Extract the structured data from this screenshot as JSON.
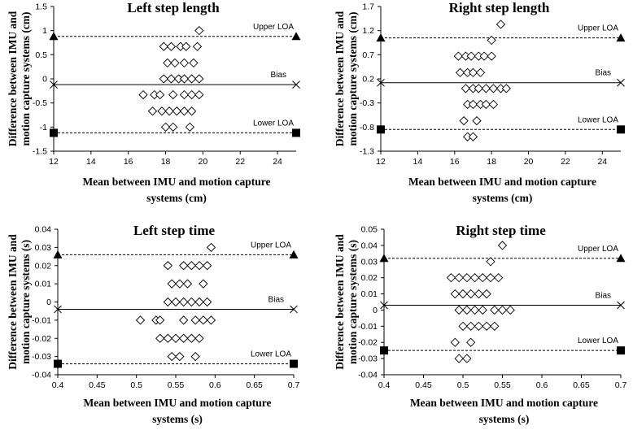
{
  "chart_data": [
    {
      "type": "scatter",
      "title": "Left step length",
      "ylabel": "Difference between IMU and motion capture systems (cm)",
      "xlabel": "Mean between IMU and motion capture systems (cm)",
      "xlim": [
        12,
        25
      ],
      "ylim": [
        -1.5,
        1.5
      ],
      "xticks": [
        "12",
        "14",
        "16",
        "18",
        "20",
        "22",
        "24"
      ],
      "yticks": [
        "1.5",
        "1",
        "0.5",
        "0",
        "-0.5",
        "-1",
        "-1.5"
      ],
      "annotations": {
        "upper": "Upper LOA",
        "bias": "Bias",
        "lower": "Lower LOA"
      },
      "upper_loa": 0.88,
      "bias": -0.12,
      "lower_loa": -1.12,
      "points": [
        {
          "x": 19.8,
          "y": 1.0
        },
        {
          "x": 17.9,
          "y": 0.67
        },
        {
          "x": 18.3,
          "y": 0.67
        },
        {
          "x": 18.8,
          "y": 0.67
        },
        {
          "x": 19.1,
          "y": 0.67
        },
        {
          "x": 19.7,
          "y": 0.67
        },
        {
          "x": 18.1,
          "y": 0.33
        },
        {
          "x": 18.5,
          "y": 0.33
        },
        {
          "x": 19.0,
          "y": 0.33
        },
        {
          "x": 19.5,
          "y": 0.33
        },
        {
          "x": 17.9,
          "y": 0.0
        },
        {
          "x": 18.3,
          "y": 0.0
        },
        {
          "x": 18.7,
          "y": 0.0
        },
        {
          "x": 19.0,
          "y": 0.0
        },
        {
          "x": 19.4,
          "y": 0.0
        },
        {
          "x": 19.8,
          "y": 0.0
        },
        {
          "x": 16.8,
          "y": -0.33
        },
        {
          "x": 17.4,
          "y": -0.33
        },
        {
          "x": 17.7,
          "y": -0.33
        },
        {
          "x": 18.4,
          "y": -0.33
        },
        {
          "x": 19.0,
          "y": -0.33
        },
        {
          "x": 19.4,
          "y": -0.33
        },
        {
          "x": 19.8,
          "y": -0.33
        },
        {
          "x": 17.3,
          "y": -0.67
        },
        {
          "x": 17.8,
          "y": -0.67
        },
        {
          "x": 18.2,
          "y": -0.67
        },
        {
          "x": 18.6,
          "y": -0.67
        },
        {
          "x": 19.0,
          "y": -0.67
        },
        {
          "x": 19.4,
          "y": -0.67
        },
        {
          "x": 18.0,
          "y": -1.0
        },
        {
          "x": 18.4,
          "y": -1.0
        },
        {
          "x": 19.3,
          "y": -1.0
        }
      ]
    },
    {
      "type": "scatter",
      "title": "Right step length",
      "ylabel": "Difference between IMU and motion capture systems (cm)",
      "xlabel": "Mean between IMU and motion capture systems (cm)",
      "xlim": [
        12,
        25
      ],
      "ylim": [
        -1.3,
        1.7
      ],
      "xticks": [
        "12",
        "14",
        "16",
        "18",
        "20",
        "22",
        "24"
      ],
      "yticks": [
        "1.7",
        "1.2",
        "0.7",
        "0.2",
        "-0.3",
        "-0.8",
        "-1.3"
      ],
      "annotations": {
        "upper": "Upper LOA",
        "bias": "Bias",
        "lower": "Lower LOA"
      },
      "upper_loa": 1.05,
      "bias": 0.12,
      "lower_loa": -0.85,
      "points": [
        {
          "x": 18.5,
          "y": 1.33
        },
        {
          "x": 18.0,
          "y": 1.0
        },
        {
          "x": 16.2,
          "y": 0.67
        },
        {
          "x": 16.6,
          "y": 0.67
        },
        {
          "x": 16.9,
          "y": 0.67
        },
        {
          "x": 17.3,
          "y": 0.67
        },
        {
          "x": 17.6,
          "y": 0.67
        },
        {
          "x": 18.0,
          "y": 0.67
        },
        {
          "x": 16.3,
          "y": 0.33
        },
        {
          "x": 16.7,
          "y": 0.33
        },
        {
          "x": 17.0,
          "y": 0.33
        },
        {
          "x": 17.4,
          "y": 0.33
        },
        {
          "x": 16.6,
          "y": 0.0
        },
        {
          "x": 17.0,
          "y": 0.0
        },
        {
          "x": 17.3,
          "y": 0.0
        },
        {
          "x": 17.7,
          "y": 0.0
        },
        {
          "x": 18.1,
          "y": 0.0
        },
        {
          "x": 18.5,
          "y": 0.0
        },
        {
          "x": 18.8,
          "y": 0.0
        },
        {
          "x": 16.7,
          "y": -0.33
        },
        {
          "x": 17.0,
          "y": -0.33
        },
        {
          "x": 17.4,
          "y": -0.33
        },
        {
          "x": 17.7,
          "y": -0.33
        },
        {
          "x": 18.1,
          "y": -0.33
        },
        {
          "x": 16.5,
          "y": -0.67
        },
        {
          "x": 17.2,
          "y": -0.67
        },
        {
          "x": 16.7,
          "y": -1.0
        },
        {
          "x": 17.0,
          "y": -1.0
        }
      ]
    },
    {
      "type": "scatter",
      "title": "Left step time",
      "ylabel": "Difference between IMU and motion capture systems (s)",
      "xlabel": "Mean between IMU and motion capture systems (s)",
      "xlim": [
        0.4,
        0.7
      ],
      "ylim": [
        -0.04,
        0.04
      ],
      "xticks": [
        "0.4",
        "0.45",
        "0.5",
        "0.55",
        "0.6",
        "0.65",
        "0.7"
      ],
      "yticks": [
        "0.04",
        "0.03",
        "0.02",
        "0.01",
        "0",
        "-0.01",
        "-0.02",
        "-0.03",
        "-0.04"
      ],
      "annotations": {
        "upper": "Upper LOA",
        "bias": "Bias",
        "lower": "Lower LOA"
      },
      "upper_loa": 0.026,
      "bias": -0.004,
      "lower_loa": -0.034,
      "points": [
        {
          "x": 0.595,
          "y": 0.03
        },
        {
          "x": 0.54,
          "y": 0.02
        },
        {
          "x": 0.56,
          "y": 0.02
        },
        {
          "x": 0.57,
          "y": 0.02
        },
        {
          "x": 0.58,
          "y": 0.02
        },
        {
          "x": 0.59,
          "y": 0.02
        },
        {
          "x": 0.545,
          "y": 0.01
        },
        {
          "x": 0.555,
          "y": 0.01
        },
        {
          "x": 0.565,
          "y": 0.01
        },
        {
          "x": 0.585,
          "y": 0.01
        },
        {
          "x": 0.54,
          "y": 0.0
        },
        {
          "x": 0.55,
          "y": 0.0
        },
        {
          "x": 0.56,
          "y": 0.0
        },
        {
          "x": 0.57,
          "y": 0.0
        },
        {
          "x": 0.58,
          "y": 0.0
        },
        {
          "x": 0.59,
          "y": 0.0
        },
        {
          "x": 0.505,
          "y": -0.01
        },
        {
          "x": 0.525,
          "y": -0.01
        },
        {
          "x": 0.53,
          "y": -0.01
        },
        {
          "x": 0.56,
          "y": -0.01
        },
        {
          "x": 0.575,
          "y": -0.01
        },
        {
          "x": 0.585,
          "y": -0.01
        },
        {
          "x": 0.595,
          "y": -0.01
        },
        {
          "x": 0.53,
          "y": -0.02
        },
        {
          "x": 0.54,
          "y": -0.02
        },
        {
          "x": 0.55,
          "y": -0.02
        },
        {
          "x": 0.56,
          "y": -0.02
        },
        {
          "x": 0.57,
          "y": -0.02
        },
        {
          "x": 0.58,
          "y": -0.02
        },
        {
          "x": 0.545,
          "y": -0.03
        },
        {
          "x": 0.555,
          "y": -0.03
        },
        {
          "x": 0.575,
          "y": -0.03
        }
      ]
    },
    {
      "type": "scatter",
      "title": "Right step time",
      "ylabel": "Difference between IMU and motion capture systems (s)",
      "xlabel": "Mean between IMU and motion capture systems (s)",
      "xlim": [
        0.4,
        0.7
      ],
      "ylim": [
        -0.04,
        0.05
      ],
      "xticks": [
        "0.4",
        "0.45",
        "0.5",
        "0.55",
        "0.6",
        "0.65",
        "0.7"
      ],
      "yticks": [
        "0.05",
        "0.04",
        "0.03",
        "0.02",
        "0.01",
        "0",
        "-0.01",
        "-0.02",
        "-0.03",
        "-0.04"
      ],
      "annotations": {
        "upper": "Upper LOA",
        "bias": "Bias",
        "lower": "Lower LOA"
      },
      "upper_loa": 0.032,
      "bias": 0.003,
      "lower_loa": -0.025,
      "points": [
        {
          "x": 0.55,
          "y": 0.04
        },
        {
          "x": 0.535,
          "y": 0.03
        },
        {
          "x": 0.485,
          "y": 0.02
        },
        {
          "x": 0.495,
          "y": 0.02
        },
        {
          "x": 0.505,
          "y": 0.02
        },
        {
          "x": 0.515,
          "y": 0.02
        },
        {
          "x": 0.525,
          "y": 0.02
        },
        {
          "x": 0.535,
          "y": 0.02
        },
        {
          "x": 0.545,
          "y": 0.02
        },
        {
          "x": 0.49,
          "y": 0.01
        },
        {
          "x": 0.5,
          "y": 0.01
        },
        {
          "x": 0.51,
          "y": 0.01
        },
        {
          "x": 0.52,
          "y": 0.01
        },
        {
          "x": 0.53,
          "y": 0.01
        },
        {
          "x": 0.495,
          "y": 0.0
        },
        {
          "x": 0.505,
          "y": 0.0
        },
        {
          "x": 0.515,
          "y": 0.0
        },
        {
          "x": 0.525,
          "y": 0.0
        },
        {
          "x": 0.54,
          "y": 0.0
        },
        {
          "x": 0.55,
          "y": 0.0
        },
        {
          "x": 0.56,
          "y": 0.0
        },
        {
          "x": 0.5,
          "y": -0.01
        },
        {
          "x": 0.51,
          "y": -0.01
        },
        {
          "x": 0.52,
          "y": -0.01
        },
        {
          "x": 0.53,
          "y": -0.01
        },
        {
          "x": 0.54,
          "y": -0.01
        },
        {
          "x": 0.49,
          "y": -0.02
        },
        {
          "x": 0.51,
          "y": -0.02
        },
        {
          "x": 0.495,
          "y": -0.03
        },
        {
          "x": 0.505,
          "y": -0.03
        }
      ]
    }
  ]
}
